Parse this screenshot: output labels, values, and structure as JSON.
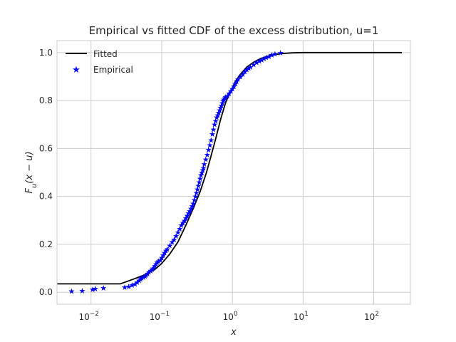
{
  "chart_data": {
    "type": "line",
    "title": "Empirical vs fitted CDF of the excess distribution, u=1",
    "xlabel": "x",
    "ylabel_main": "F",
    "ylabel_sub": "u",
    "ylabel_args": "(x − u)",
    "xscale": "log",
    "xlim": [
      0.0033,
      330
    ],
    "ylim": [
      -0.05,
      1.05
    ],
    "grid": true,
    "legend_position": "top-left",
    "xticks": [
      {
        "value": 0.01,
        "base": "10",
        "exp": "−2"
      },
      {
        "value": 0.1,
        "base": "10",
        "exp": "−1"
      },
      {
        "value": 1,
        "base": "10",
        "exp": "0"
      },
      {
        "value": 10,
        "base": "10",
        "exp": "1"
      },
      {
        "value": 100,
        "base": "10",
        "exp": "2"
      }
    ],
    "yticks": [
      {
        "value": 0.0,
        "label": "0.0"
      },
      {
        "value": 0.2,
        "label": "0.2"
      },
      {
        "value": 0.4,
        "label": "0.4"
      },
      {
        "value": 0.6,
        "label": "0.6"
      },
      {
        "value": 0.8,
        "label": "0.8"
      },
      {
        "value": 1.0,
        "label": "1.0"
      }
    ],
    "series": [
      {
        "name": "Fitted",
        "kind": "line",
        "color": "#000000",
        "x": [
          0.0033,
          0.026,
          0.04,
          0.06,
          0.08,
          0.1,
          0.13,
          0.17,
          0.22,
          0.28,
          0.35,
          0.43,
          0.5,
          0.58,
          0.68,
          0.8,
          0.95,
          1.1,
          1.3,
          1.6,
          2.0,
          2.5,
          3.2,
          4.0,
          5.0,
          7.0,
          10,
          30,
          100,
          250
        ],
        "y": [
          0.035,
          0.035,
          0.055,
          0.075,
          0.095,
          0.12,
          0.16,
          0.21,
          0.28,
          0.35,
          0.42,
          0.5,
          0.57,
          0.64,
          0.72,
          0.79,
          0.84,
          0.88,
          0.91,
          0.94,
          0.96,
          0.975,
          0.985,
          0.992,
          0.996,
          0.999,
          1.0,
          1.0,
          1.0,
          1.0
        ]
      },
      {
        "name": "Empirical",
        "kind": "scatter",
        "color": "#0000ff",
        "x": [
          0.0053,
          0.0075,
          0.0105,
          0.0115,
          0.015,
          0.03,
          0.034,
          0.038,
          0.042,
          0.045,
          0.048,
          0.05,
          0.052,
          0.055,
          0.058,
          0.06,
          0.063,
          0.066,
          0.07,
          0.073,
          0.076,
          0.08,
          0.083,
          0.086,
          0.09,
          0.095,
          0.1,
          0.105,
          0.11,
          0.115,
          0.12,
          0.13,
          0.14,
          0.15,
          0.16,
          0.17,
          0.18,
          0.19,
          0.2,
          0.21,
          0.22,
          0.23,
          0.24,
          0.25,
          0.26,
          0.27,
          0.28,
          0.29,
          0.3,
          0.31,
          0.32,
          0.33,
          0.34,
          0.35,
          0.36,
          0.37,
          0.38,
          0.39,
          0.4,
          0.42,
          0.44,
          0.46,
          0.48,
          0.5,
          0.52,
          0.54,
          0.56,
          0.58,
          0.6,
          0.62,
          0.64,
          0.66,
          0.68,
          0.7,
          0.72,
          0.74,
          0.76,
          0.78,
          0.8,
          0.85,
          0.9,
          0.95,
          1.0,
          1.05,
          1.1,
          1.15,
          1.2,
          1.3,
          1.4,
          1.5,
          1.6,
          1.7,
          1.8,
          2.0,
          2.2,
          2.4,
          2.6,
          2.8,
          3.0,
          3.3,
          3.6,
          4.0,
          4.8
        ],
        "y": [
          0.005,
          0.007,
          0.012,
          0.015,
          0.018,
          0.022,
          0.025,
          0.03,
          0.035,
          0.042,
          0.05,
          0.055,
          0.06,
          0.063,
          0.068,
          0.072,
          0.078,
          0.085,
          0.09,
          0.095,
          0.1,
          0.11,
          0.118,
          0.125,
          0.13,
          0.135,
          0.145,
          0.155,
          0.165,
          0.175,
          0.18,
          0.195,
          0.21,
          0.22,
          0.235,
          0.25,
          0.265,
          0.28,
          0.29,
          0.3,
          0.31,
          0.32,
          0.33,
          0.34,
          0.35,
          0.36,
          0.37,
          0.385,
          0.4,
          0.415,
          0.43,
          0.445,
          0.46,
          0.475,
          0.49,
          0.5,
          0.51,
          0.52,
          0.535,
          0.555,
          0.575,
          0.595,
          0.615,
          0.635,
          0.66,
          0.68,
          0.7,
          0.715,
          0.73,
          0.74,
          0.75,
          0.76,
          0.77,
          0.78,
          0.79,
          0.8,
          0.805,
          0.81,
          0.815,
          0.82,
          0.83,
          0.84,
          0.85,
          0.86,
          0.87,
          0.88,
          0.89,
          0.9,
          0.91,
          0.92,
          0.93,
          0.935,
          0.94,
          0.95,
          0.96,
          0.965,
          0.97,
          0.975,
          0.98,
          0.985,
          0.99,
          0.995,
          1.0
        ]
      }
    ]
  }
}
